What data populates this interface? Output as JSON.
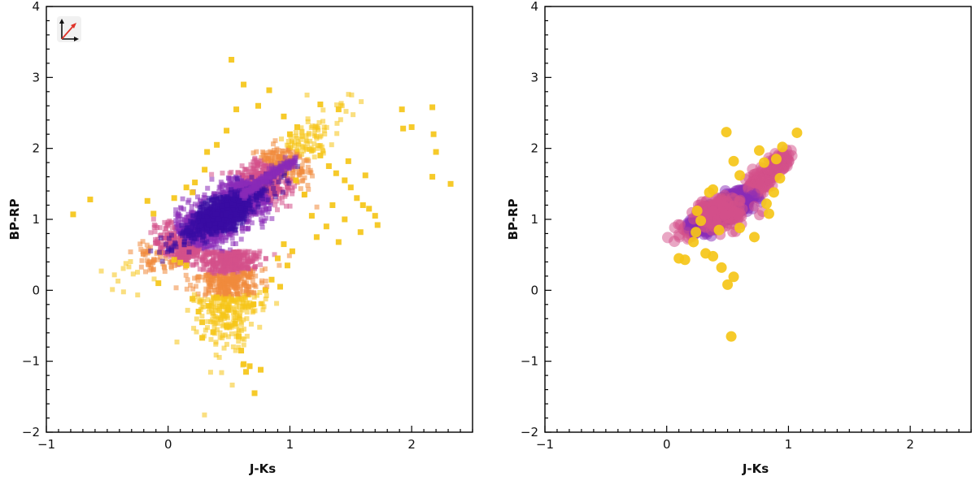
{
  "chart_data": [
    {
      "type": "scatter",
      "panel": "left",
      "xlabel": "J-Ks",
      "ylabel": "BP-RP",
      "xlim": [
        -1,
        2.5
      ],
      "ylim": [
        -2,
        4
      ],
      "xticks": [
        "-1",
        "0",
        "1",
        "2"
      ],
      "yticks": [
        "-2",
        "-1",
        "0",
        "1",
        "2",
        "3",
        "4"
      ],
      "grid": false,
      "marker": "square",
      "density_colormap": [
        "#f5c518",
        "#f08a3c",
        "#d4508a",
        "#8a2bb8",
        "#3a0ca3"
      ],
      "core_center": [
        0.45,
        1.08
      ],
      "points": [
        [
          -0.78,
          1.07
        ],
        [
          -0.64,
          1.28
        ],
        [
          -0.17,
          1.26
        ],
        [
          -0.12,
          1.08
        ],
        [
          0.05,
          0.43
        ],
        [
          0.1,
          0.39
        ],
        [
          0.15,
          0.35
        ],
        [
          -0.08,
          0.1
        ],
        [
          0.28,
          -0.67
        ],
        [
          0.37,
          -0.59
        ],
        [
          0.55,
          -0.47
        ],
        [
          0.58,
          -0.65
        ],
        [
          0.6,
          -0.85
        ],
        [
          0.62,
          -1.04
        ],
        [
          0.64,
          -1.15
        ],
        [
          0.67,
          -1.07
        ],
        [
          0.71,
          -1.45
        ],
        [
          0.76,
          -1.12
        ],
        [
          0.52,
          3.25
        ],
        [
          0.62,
          2.9
        ],
        [
          0.83,
          2.82
        ],
        [
          0.95,
          2.45
        ],
        [
          1.0,
          2.2
        ],
        [
          1.06,
          2.3
        ],
        [
          1.25,
          2.62
        ],
        [
          1.4,
          2.55
        ],
        [
          1.25,
          1.9
        ],
        [
          1.32,
          1.75
        ],
        [
          1.38,
          1.65
        ],
        [
          1.45,
          1.55
        ],
        [
          1.5,
          1.45
        ],
        [
          1.55,
          1.3
        ],
        [
          1.6,
          1.2
        ],
        [
          1.65,
          1.15
        ],
        [
          1.7,
          1.05
        ],
        [
          1.72,
          0.92
        ],
        [
          1.45,
          1.0
        ],
        [
          1.3,
          0.9
        ],
        [
          1.22,
          0.75
        ],
        [
          1.4,
          0.68
        ],
        [
          1.35,
          1.2
        ],
        [
          1.18,
          1.05
        ],
        [
          1.12,
          1.35
        ],
        [
          1.05,
          1.55
        ],
        [
          1.92,
          2.55
        ],
        [
          1.93,
          2.28
        ],
        [
          2.0,
          2.3
        ],
        [
          2.17,
          2.58
        ],
        [
          2.18,
          2.2
        ],
        [
          2.2,
          1.95
        ],
        [
          2.17,
          1.6
        ],
        [
          2.32,
          1.5
        ],
        [
          1.58,
          0.82
        ],
        [
          1.62,
          1.62
        ],
        [
          1.48,
          1.82
        ],
        [
          0.15,
          1.45
        ],
        [
          0.2,
          1.38
        ],
        [
          0.22,
          1.52
        ],
        [
          0.05,
          1.3
        ],
        [
          0.3,
          1.7
        ],
        [
          0.32,
          1.95
        ],
        [
          0.4,
          2.05
        ],
        [
          0.48,
          2.25
        ],
        [
          0.56,
          2.55
        ],
        [
          0.74,
          2.6
        ],
        [
          0.2,
          -0.12
        ],
        [
          0.25,
          -0.3
        ],
        [
          0.28,
          -0.45
        ],
        [
          0.33,
          -0.22
        ],
        [
          0.45,
          -0.35
        ],
        [
          0.48,
          -0.5
        ],
        [
          0.4,
          -0.1
        ],
        [
          0.85,
          0.15
        ],
        [
          0.92,
          0.05
        ],
        [
          0.98,
          0.35
        ],
        [
          1.02,
          0.55
        ],
        [
          0.95,
          0.65
        ],
        [
          0.9,
          0.45
        ],
        [
          0.8,
          0.0
        ],
        [
          0.7,
          -0.2
        ]
      ]
    },
    {
      "type": "scatter",
      "panel": "right",
      "xlabel": "J-Ks",
      "ylabel": "BP-RP",
      "xlim": [
        -1,
        2.5
      ],
      "ylim": [
        -2,
        4
      ],
      "xticks": [
        "-1",
        "0",
        "1",
        "2"
      ],
      "yticks": [
        "-2",
        "-1",
        "0",
        "1",
        "2",
        "3",
        "4"
      ],
      "grid": false,
      "marker": "circle",
      "density_colormap": [
        "#f5c518",
        "#f08a3c",
        "#d4508a",
        "#8a2bb8",
        "#3a0ca3"
      ],
      "core_center": [
        0.45,
        1.1
      ],
      "points": [
        [
          0.1,
          0.45
        ],
        [
          0.15,
          0.43
        ],
        [
          0.22,
          0.68
        ],
        [
          0.24,
          0.82
        ],
        [
          0.32,
          0.52
        ],
        [
          0.38,
          0.48
        ],
        [
          0.45,
          0.32
        ],
        [
          0.5,
          0.08
        ],
        [
          0.55,
          0.19
        ],
        [
          0.53,
          -0.65
        ],
        [
          0.49,
          2.23
        ],
        [
          0.55,
          1.82
        ],
        [
          0.6,
          1.62
        ],
        [
          0.76,
          1.97
        ],
        [
          0.8,
          1.8
        ],
        [
          0.9,
          1.85
        ],
        [
          0.95,
          2.02
        ],
        [
          1.07,
          2.22
        ],
        [
          0.93,
          1.58
        ],
        [
          0.88,
          1.38
        ],
        [
          0.84,
          1.08
        ],
        [
          0.82,
          1.22
        ],
        [
          0.72,
          0.75
        ],
        [
          0.6,
          0.88
        ],
        [
          0.43,
          0.85
        ],
        [
          0.35,
          1.38
        ],
        [
          0.38,
          1.42
        ],
        [
          0.25,
          1.12
        ],
        [
          0.28,
          0.98
        ]
      ]
    }
  ],
  "icons": {
    "left_panel_corner": "axes-arrows-icon"
  }
}
